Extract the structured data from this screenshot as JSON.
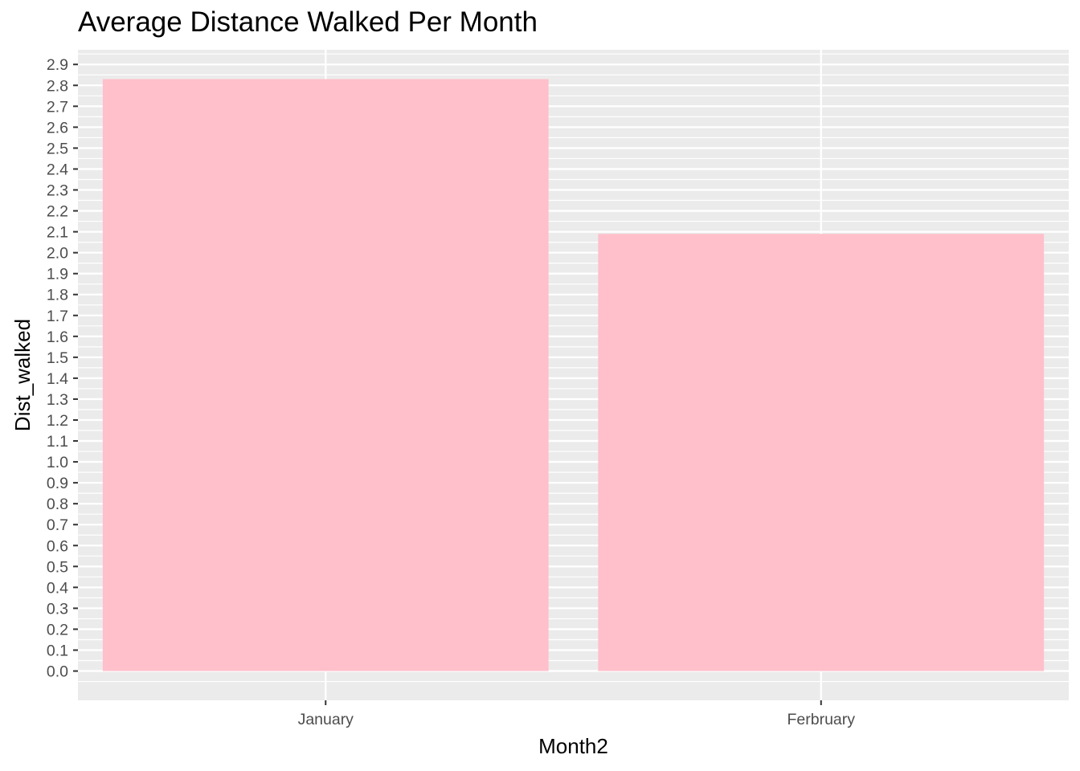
{
  "chart_data": {
    "type": "bar",
    "title": "Average Distance Walked Per Month",
    "xlabel": "Month2",
    "ylabel": "Dist_walked",
    "categories": [
      "January",
      "Ferbruary"
    ],
    "values": [
      2.83,
      2.09
    ],
    "ylim": [
      -0.14,
      2.97
    ],
    "y_ticks": [
      "0.0",
      "0.1",
      "0.2",
      "0.3",
      "0.4",
      "0.5",
      "0.6",
      "0.7",
      "0.8",
      "0.9",
      "1.0",
      "1.1",
      "1.2",
      "1.3",
      "1.4",
      "1.5",
      "1.6",
      "1.7",
      "1.8",
      "1.9",
      "2.0",
      "2.1",
      "2.2",
      "2.3",
      "2.4",
      "2.5",
      "2.6",
      "2.7",
      "2.8",
      "2.9"
    ],
    "grid": true,
    "legend": "none",
    "colors": {
      "bar": "#ffc0cb",
      "panel_background": "#ebebeb",
      "grid": "#ffffff",
      "tick_text": "#4d4d4d",
      "title_text": "#000000"
    }
  }
}
